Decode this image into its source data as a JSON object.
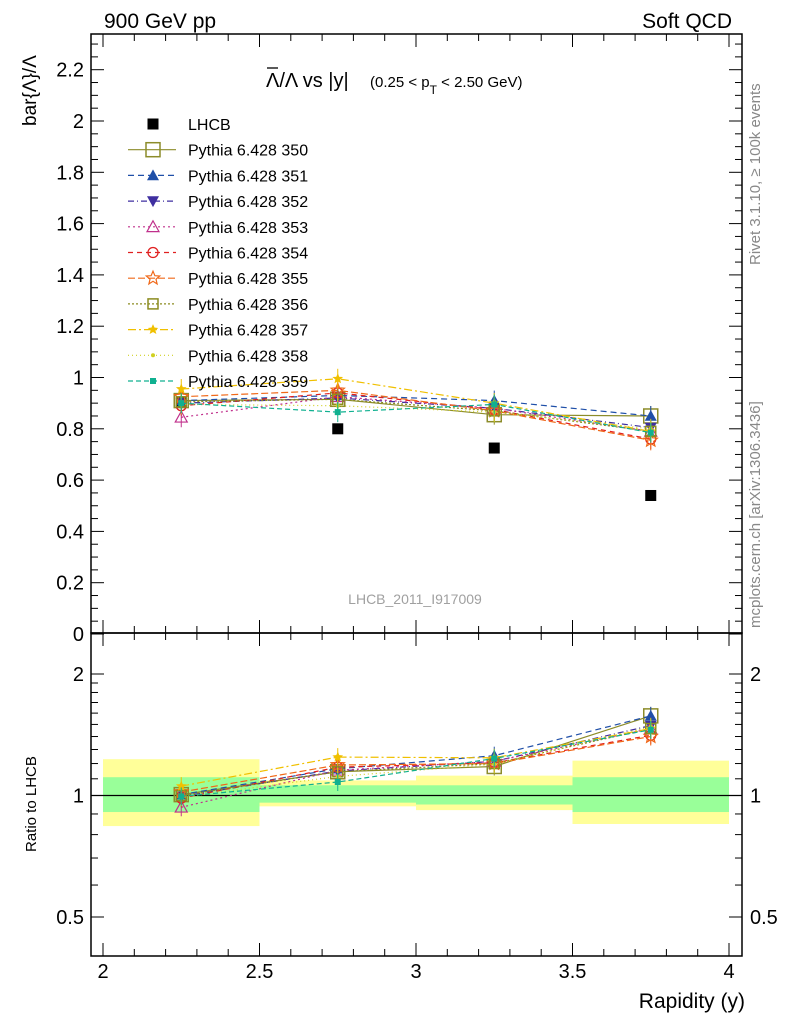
{
  "header": {
    "left": "900 GeV pp",
    "right": "Soft QCD"
  },
  "side_labels": {
    "rivet": "Rivet 3.1.10, ≥ 100k events",
    "mcplots": "mcplots.cern.ch [arXiv:1306.3436]"
  },
  "watermark": "LHCB_2011_I917009",
  "colors": {
    "LHCB": "#000000",
    "p350": "#8c8c2a",
    "p351": "#1f4fa8",
    "p352": "#3f2fa0",
    "p353": "#c0308c",
    "p354": "#e02020",
    "p355": "#f06818",
    "p356": "#8c8c20",
    "p357": "#f0c000",
    "p358": "#d0d020",
    "p359": "#10b090",
    "band_inner": "#99ff99",
    "band_outer": "#ffff99"
  },
  "chart_data": [
    {
      "panel": "main",
      "type": "scatter",
      "title_main": "Λ/Λ vs |y|",
      "title_cut": "(0.25 < p",
      "title_cut_sub": "T",
      "title_cut_end": " < 2.50 GeV)",
      "ylabel": "bar{Λ}/Λ",
      "xlim": [
        2,
        4
      ],
      "ylim": [
        0,
        2.35
      ],
      "yticks": [
        0,
        0.2,
        0.4,
        0.6,
        0.8,
        1,
        1.2,
        1.4,
        1.6,
        1.8,
        2,
        2.2
      ],
      "ytick_labels": [
        "0",
        "0.2",
        "0.4",
        "0.6",
        "0.8",
        "1",
        "1.2",
        "1.4",
        "1.6",
        "1.8",
        "2",
        "2.2"
      ],
      "x": [
        2.25,
        2.75,
        3.25,
        3.75
      ],
      "series": [
        {
          "name": "LHCB",
          "values": [
            0.905,
            0.8,
            0.725,
            0.54
          ]
        },
        {
          "name": "Pythia 6.428 350",
          "values": [
            0.91,
            0.915,
            0.855,
            0.85
          ]
        },
        {
          "name": "Pythia 6.428 351",
          "values": [
            0.91,
            0.93,
            0.91,
            0.85
          ]
        },
        {
          "name": "Pythia 6.428 352",
          "values": [
            0.9,
            0.92,
            0.88,
            0.805
          ]
        },
        {
          "name": "Pythia 6.428 353",
          "values": [
            0.845,
            0.925,
            0.88,
            0.79
          ]
        },
        {
          "name": "Pythia 6.428 354",
          "values": [
            0.89,
            0.94,
            0.875,
            0.76
          ]
        },
        {
          "name": "Pythia 6.428 355",
          "values": [
            0.925,
            0.95,
            0.87,
            0.755
          ]
        },
        {
          "name": "Pythia 6.428 356",
          "values": [
            0.905,
            0.915,
            0.87,
            0.79
          ]
        },
        {
          "name": "Pythia 6.428 357",
          "values": [
            0.955,
            0.995,
            0.9,
            0.79
          ]
        },
        {
          "name": "Pythia 6.428 358",
          "values": [
            0.895,
            0.89,
            0.865,
            0.8
          ]
        },
        {
          "name": "Pythia 6.428 359",
          "values": [
            0.9,
            0.865,
            0.895,
            0.785
          ]
        }
      ]
    },
    {
      "panel": "ratio",
      "type": "scatter",
      "ylabel": "Ratio to LHCB",
      "xlabel": "Rapidity (y)",
      "xlim": [
        2,
        4
      ],
      "ylim": [
        0.42,
        2.35
      ],
      "yscale": "log",
      "yticks": [
        0.5,
        1,
        2
      ],
      "ytick_labels": [
        "0.5",
        "1",
        "2"
      ],
      "xticks": [
        2,
        2.5,
        3,
        3.5,
        4
      ],
      "xtick_labels": [
        "2",
        "2.5",
        "3",
        "3.5",
        "4"
      ],
      "x": [
        2.25,
        2.75,
        3.25,
        3.75
      ],
      "bands": {
        "bins": [
          [
            2,
            2.5
          ],
          [
            2.5,
            3
          ],
          [
            3,
            3.5
          ],
          [
            3.5,
            4
          ]
        ],
        "inner": [
          [
            0.91,
            1.11
          ],
          [
            0.96,
            1.06
          ],
          [
            0.95,
            1.06
          ],
          [
            0.91,
            1.11
          ]
        ],
        "outer": [
          [
            0.84,
            1.23
          ],
          [
            0.94,
            1.09
          ],
          [
            0.92,
            1.12
          ],
          [
            0.85,
            1.22
          ]
        ]
      },
      "series": [
        {
          "name": "Pythia 6.428 350",
          "values": [
            1.005,
            1.145,
            1.18,
            1.575
          ]
        },
        {
          "name": "Pythia 6.428 351",
          "values": [
            1.005,
            1.165,
            1.255,
            1.575
          ]
        },
        {
          "name": "Pythia 6.428 352",
          "values": [
            0.995,
            1.15,
            1.215,
            1.49
          ]
        },
        {
          "name": "Pythia 6.428 353",
          "values": [
            0.935,
            1.155,
            1.215,
            1.465
          ]
        },
        {
          "name": "Pythia 6.428 354",
          "values": [
            0.985,
            1.175,
            1.205,
            1.41
          ]
        },
        {
          "name": "Pythia 6.428 355",
          "values": [
            1.02,
            1.19,
            1.2,
            1.4
          ]
        },
        {
          "name": "Pythia 6.428 356",
          "values": [
            1.0,
            1.145,
            1.2,
            1.465
          ]
        },
        {
          "name": "Pythia 6.428 357",
          "values": [
            1.055,
            1.245,
            1.24,
            1.465
          ]
        },
        {
          "name": "Pythia 6.428 358",
          "values": [
            0.99,
            1.115,
            1.195,
            1.48
          ]
        },
        {
          "name": "Pythia 6.428 359",
          "values": [
            0.995,
            1.08,
            1.235,
            1.455
          ]
        }
      ]
    }
  ]
}
